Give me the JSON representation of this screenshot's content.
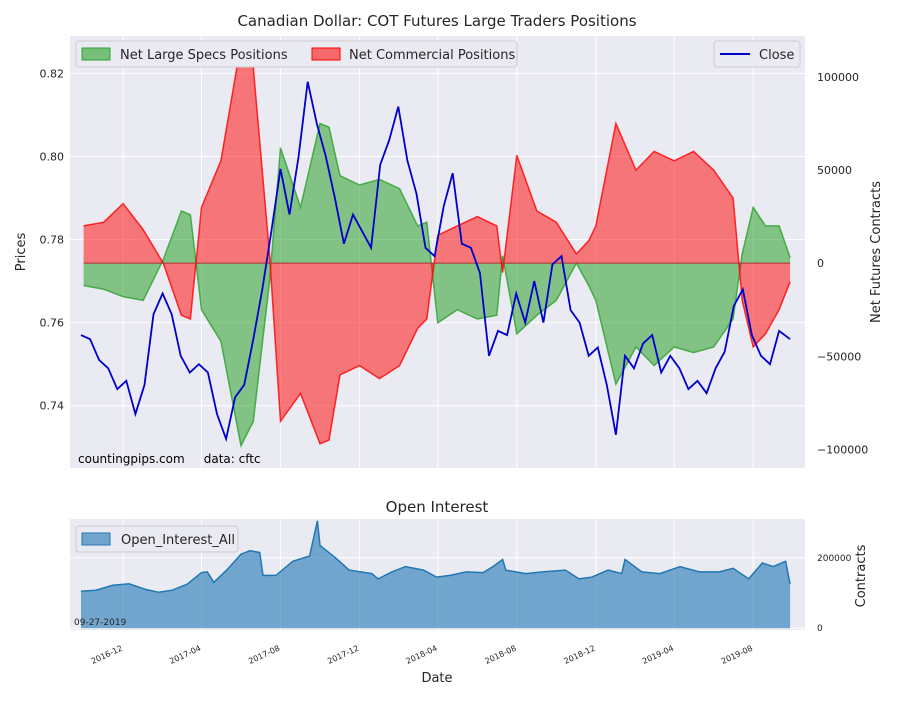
{
  "chart_data": [
    {
      "type": "area",
      "title": "Canadian Dollar: COT Futures Large Traders Positions",
      "ylabel_left": "Prices",
      "ylabel_right": "Net Futures Contracts",
      "ylim_left": [
        0.725,
        0.829
      ],
      "ylim_right": [
        -110000,
        122000
      ],
      "yticks_left": [
        "0.74",
        "0.76",
        "0.78",
        "0.80",
        "0.82"
      ],
      "ytick_values_left": [
        0.74,
        0.76,
        0.78,
        0.8,
        0.82
      ],
      "yticks_right": [
        "−100000",
        "−50000",
        "0",
        "50000",
        "100000"
      ],
      "ytick_values_right": [
        -100000,
        -50000,
        0,
        50000,
        100000
      ],
      "xlim": [
        "2016-09-10",
        "2019-10-20"
      ],
      "grid": true,
      "legend_left": [
        "Net Large Specs Positions",
        "Net Commercial Positions"
      ],
      "legend_right": [
        "Close"
      ],
      "annotation": "countingpips.com     data: cftc",
      "series": [
        {
          "name": "Net Large Specs Positions",
          "color": "#2ca02c",
          "kind": "area",
          "points": [
            [
              "2016-10-01",
              -12000
            ],
            [
              "2016-11-01",
              -14000
            ],
            [
              "2016-12-01",
              -18000
            ],
            [
              "2017-01-01",
              -20000
            ],
            [
              "2017-02-01",
              2000
            ],
            [
              "2017-03-01",
              28000
            ],
            [
              "2017-03-15",
              26000
            ],
            [
              "2017-04-01",
              -25000
            ],
            [
              "2017-05-01",
              -42000
            ],
            [
              "2017-06-01",
              -98000
            ],
            [
              "2017-06-20",
              -85000
            ],
            [
              "2017-07-15",
              -10000
            ],
            [
              "2017-08-01",
              62000
            ],
            [
              "2017-09-01",
              30000
            ],
            [
              "2017-10-01",
              75000
            ],
            [
              "2017-10-15",
              73000
            ],
            [
              "2017-11-01",
              47000
            ],
            [
              "2017-12-01",
              42000
            ],
            [
              "2018-01-01",
              45000
            ],
            [
              "2018-02-01",
              40000
            ],
            [
              "2018-03-01",
              20000
            ],
            [
              "2018-03-15",
              22000
            ],
            [
              "2018-04-01",
              -32000
            ],
            [
              "2018-05-01",
              -25000
            ],
            [
              "2018-06-01",
              -30000
            ],
            [
              "2018-07-01",
              -28000
            ],
            [
              "2018-07-10",
              4000
            ],
            [
              "2018-08-01",
              -38000
            ],
            [
              "2018-09-01",
              -28000
            ],
            [
              "2018-10-01",
              -20000
            ],
            [
              "2018-11-01",
              0
            ],
            [
              "2018-11-20",
              -12000
            ],
            [
              "2018-12-01",
              -20000
            ],
            [
              "2019-01-01",
              -65000
            ],
            [
              "2019-02-01",
              -45000
            ],
            [
              "2019-03-01",
              -55000
            ],
            [
              "2019-04-01",
              -45000
            ],
            [
              "2019-05-01",
              -48000
            ],
            [
              "2019-06-01",
              -45000
            ],
            [
              "2019-07-01",
              -30000
            ],
            [
              "2019-07-15",
              5000
            ],
            [
              "2019-08-01",
              30000
            ],
            [
              "2019-08-20",
              20000
            ],
            [
              "2019-09-10",
              20000
            ],
            [
              "2019-09-27",
              3000
            ]
          ]
        },
        {
          "name": "Net Commercial Positions",
          "color": "#ff0000",
          "kind": "area",
          "points": [
            [
              "2016-10-01",
              20000
            ],
            [
              "2016-11-01",
              22000
            ],
            [
              "2016-12-01",
              32000
            ],
            [
              "2017-01-01",
              18000
            ],
            [
              "2017-02-01",
              0
            ],
            [
              "2017-03-01",
              -28000
            ],
            [
              "2017-03-15",
              -30000
            ],
            [
              "2017-04-01",
              30000
            ],
            [
              "2017-05-01",
              55000
            ],
            [
              "2017-06-01",
              118000
            ],
            [
              "2017-06-20",
              105000
            ],
            [
              "2017-07-15",
              5000
            ],
            [
              "2017-08-01",
              -85000
            ],
            [
              "2017-09-01",
              -70000
            ],
            [
              "2017-10-01",
              -97000
            ],
            [
              "2017-10-15",
              -95000
            ],
            [
              "2017-11-01",
              -60000
            ],
            [
              "2017-12-01",
              -55000
            ],
            [
              "2018-01-01",
              -62000
            ],
            [
              "2018-02-01",
              -55000
            ],
            [
              "2018-03-01",
              -35000
            ],
            [
              "2018-03-15",
              -30000
            ],
            [
              "2018-04-01",
              15000
            ],
            [
              "2018-05-01",
              20000
            ],
            [
              "2018-06-01",
              25000
            ],
            [
              "2018-07-01",
              20000
            ],
            [
              "2018-07-10",
              -5000
            ],
            [
              "2018-08-01",
              58000
            ],
            [
              "2018-09-01",
              28000
            ],
            [
              "2018-10-01",
              22000
            ],
            [
              "2018-11-01",
              5000
            ],
            [
              "2018-11-20",
              12000
            ],
            [
              "2018-12-01",
              20000
            ],
            [
              "2019-01-01",
              75000
            ],
            [
              "2019-02-01",
              50000
            ],
            [
              "2019-03-01",
              60000
            ],
            [
              "2019-04-01",
              55000
            ],
            [
              "2019-05-01",
              60000
            ],
            [
              "2019-06-01",
              50000
            ],
            [
              "2019-07-01",
              35000
            ],
            [
              "2019-07-15",
              -20000
            ],
            [
              "2019-08-01",
              -45000
            ],
            [
              "2019-08-20",
              -38000
            ],
            [
              "2019-09-10",
              -25000
            ],
            [
              "2019-09-27",
              -10000
            ]
          ]
        },
        {
          "name": "Close",
          "color": "#0000cd",
          "kind": "line",
          "axis": "left",
          "points": [
            [
              "2016-09-27",
              0.757
            ],
            [
              "2016-10-11",
              0.756
            ],
            [
              "2016-10-25",
              0.751
            ],
            [
              "2016-11-08",
              0.749
            ],
            [
              "2016-11-22",
              0.744
            ],
            [
              "2016-12-06",
              0.746
            ],
            [
              "2016-12-20",
              0.738
            ],
            [
              "2017-01-03",
              0.745
            ],
            [
              "2017-01-17",
              0.762
            ],
            [
              "2017-01-31",
              0.767
            ],
            [
              "2017-02-14",
              0.762
            ],
            [
              "2017-02-28",
              0.752
            ],
            [
              "2017-03-14",
              0.748
            ],
            [
              "2017-03-28",
              0.75
            ],
            [
              "2017-04-11",
              0.748
            ],
            [
              "2017-04-25",
              0.738
            ],
            [
              "2017-05-09",
              0.732
            ],
            [
              "2017-05-23",
              0.742
            ],
            [
              "2017-06-06",
              0.745
            ],
            [
              "2017-06-20",
              0.756
            ],
            [
              "2017-07-04",
              0.768
            ],
            [
              "2017-07-18",
              0.782
            ],
            [
              "2017-08-01",
              0.797
            ],
            [
              "2017-08-15",
              0.786
            ],
            [
              "2017-08-29",
              0.8
            ],
            [
              "2017-09-12",
              0.818
            ],
            [
              "2017-09-26",
              0.808
            ],
            [
              "2017-10-10",
              0.8
            ],
            [
              "2017-10-24",
              0.79
            ],
            [
              "2017-11-07",
              0.779
            ],
            [
              "2017-11-21",
              0.786
            ],
            [
              "2017-12-05",
              0.782
            ],
            [
              "2017-12-19",
              0.778
            ],
            [
              "2018-01-02",
              0.798
            ],
            [
              "2018-01-16",
              0.804
            ],
            [
              "2018-01-30",
              0.812
            ],
            [
              "2018-02-13",
              0.799
            ],
            [
              "2018-02-27",
              0.791
            ],
            [
              "2018-03-13",
              0.778
            ],
            [
              "2018-03-27",
              0.776
            ],
            [
              "2018-04-10",
              0.788
            ],
            [
              "2018-04-24",
              0.796
            ],
            [
              "2018-05-08",
              0.779
            ],
            [
              "2018-05-22",
              0.778
            ],
            [
              "2018-06-05",
              0.772
            ],
            [
              "2018-06-19",
              0.752
            ],
            [
              "2018-07-03",
              0.758
            ],
            [
              "2018-07-17",
              0.757
            ],
            [
              "2018-07-31",
              0.767
            ],
            [
              "2018-08-14",
              0.76
            ],
            [
              "2018-08-28",
              0.77
            ],
            [
              "2018-09-11",
              0.76
            ],
            [
              "2018-09-25",
              0.774
            ],
            [
              "2018-10-09",
              0.776
            ],
            [
              "2018-10-23",
              0.763
            ],
            [
              "2018-11-06",
              0.76
            ],
            [
              "2018-11-20",
              0.752
            ],
            [
              "2018-12-04",
              0.754
            ],
            [
              "2018-12-18",
              0.745
            ],
            [
              "2019-01-01",
              0.733
            ],
            [
              "2019-01-15",
              0.752
            ],
            [
              "2019-01-29",
              0.749
            ],
            [
              "2019-02-12",
              0.755
            ],
            [
              "2019-02-26",
              0.757
            ],
            [
              "2019-03-12",
              0.748
            ],
            [
              "2019-03-26",
              0.752
            ],
            [
              "2019-04-09",
              0.749
            ],
            [
              "2019-04-23",
              0.744
            ],
            [
              "2019-05-07",
              0.746
            ],
            [
              "2019-05-21",
              0.743
            ],
            [
              "2019-06-04",
              0.749
            ],
            [
              "2019-06-18",
              0.753
            ],
            [
              "2019-07-02",
              0.764
            ],
            [
              "2019-07-16",
              0.768
            ],
            [
              "2019-07-30",
              0.757
            ],
            [
              "2019-08-13",
              0.752
            ],
            [
              "2019-08-27",
              0.75
            ],
            [
              "2019-09-10",
              0.758
            ],
            [
              "2019-09-27",
              0.756
            ]
          ]
        }
      ]
    },
    {
      "type": "area",
      "title": "Open Interest",
      "xlabel": "Date",
      "ylabel_right": "Contracts",
      "ylim": [
        -5000,
        310000
      ],
      "yticks_right": [
        "0",
        "200000"
      ],
      "ytick_values_right": [
        0,
        200000
      ],
      "xlim": [
        "2016-09-10",
        "2019-10-20"
      ],
      "xticks": [
        "2016-12",
        "2017-04",
        "2017-08",
        "2017-12",
        "2018-04",
        "2018-08",
        "2018-12",
        "2019-04",
        "2019-08"
      ],
      "xtick_values": [
        "2016-12-01",
        "2017-04-01",
        "2017-08-01",
        "2017-12-01",
        "2018-04-01",
        "2018-08-01",
        "2018-12-01",
        "2019-04-01",
        "2019-08-01"
      ],
      "grid": true,
      "legend": [
        "Open_Interest_All"
      ],
      "date_label": "09-27-2019",
      "series": [
        {
          "name": "Open_Interest_All",
          "color": "#1f77b4",
          "points": [
            [
              "2016-09-27",
              105000
            ],
            [
              "2016-10-20",
              108000
            ],
            [
              "2016-11-15",
              122000
            ],
            [
              "2016-12-10",
              126000
            ],
            [
              "2017-01-05",
              110000
            ],
            [
              "2017-01-25",
              102000
            ],
            [
              "2017-02-15",
              108000
            ],
            [
              "2017-03-10",
              125000
            ],
            [
              "2017-04-01",
              158000
            ],
            [
              "2017-04-10",
              160000
            ],
            [
              "2017-04-20",
              130000
            ],
            [
              "2017-05-10",
              165000
            ],
            [
              "2017-06-01",
              210000
            ],
            [
              "2017-06-15",
              220000
            ],
            [
              "2017-06-30",
              215000
            ],
            [
              "2017-07-05",
              150000
            ],
            [
              "2017-07-25",
              150000
            ],
            [
              "2017-08-20",
              190000
            ],
            [
              "2017-09-15",
              205000
            ],
            [
              "2017-09-27",
              305000
            ],
            [
              "2017-10-01",
              235000
            ],
            [
              "2017-10-25",
              200000
            ],
            [
              "2017-11-15",
              165000
            ],
            [
              "2017-12-20",
              155000
            ],
            [
              "2017-12-30",
              140000
            ],
            [
              "2018-01-20",
              160000
            ],
            [
              "2018-02-10",
              175000
            ],
            [
              "2018-03-10",
              165000
            ],
            [
              "2018-03-30",
              145000
            ],
            [
              "2018-04-20",
              150000
            ],
            [
              "2018-05-15",
              160000
            ],
            [
              "2018-06-10",
              158000
            ],
            [
              "2018-06-25",
              175000
            ],
            [
              "2018-07-10",
              195000
            ],
            [
              "2018-07-15",
              165000
            ],
            [
              "2018-08-15",
              155000
            ],
            [
              "2018-09-10",
              160000
            ],
            [
              "2018-10-15",
              165000
            ],
            [
              "2018-11-05",
              140000
            ],
            [
              "2018-11-25",
              145000
            ],
            [
              "2018-12-20",
              165000
            ],
            [
              "2019-01-10",
              155000
            ],
            [
              "2019-01-15",
              195000
            ],
            [
              "2019-02-10",
              160000
            ],
            [
              "2019-03-10",
              155000
            ],
            [
              "2019-04-10",
              175000
            ],
            [
              "2019-05-10",
              160000
            ],
            [
              "2019-06-10",
              160000
            ],
            [
              "2019-07-01",
              170000
            ],
            [
              "2019-07-25",
              140000
            ],
            [
              "2019-08-15",
              185000
            ],
            [
              "2019-09-01",
              175000
            ],
            [
              "2019-09-20",
              190000
            ],
            [
              "2019-09-27",
              125000
            ]
          ]
        }
      ]
    }
  ]
}
